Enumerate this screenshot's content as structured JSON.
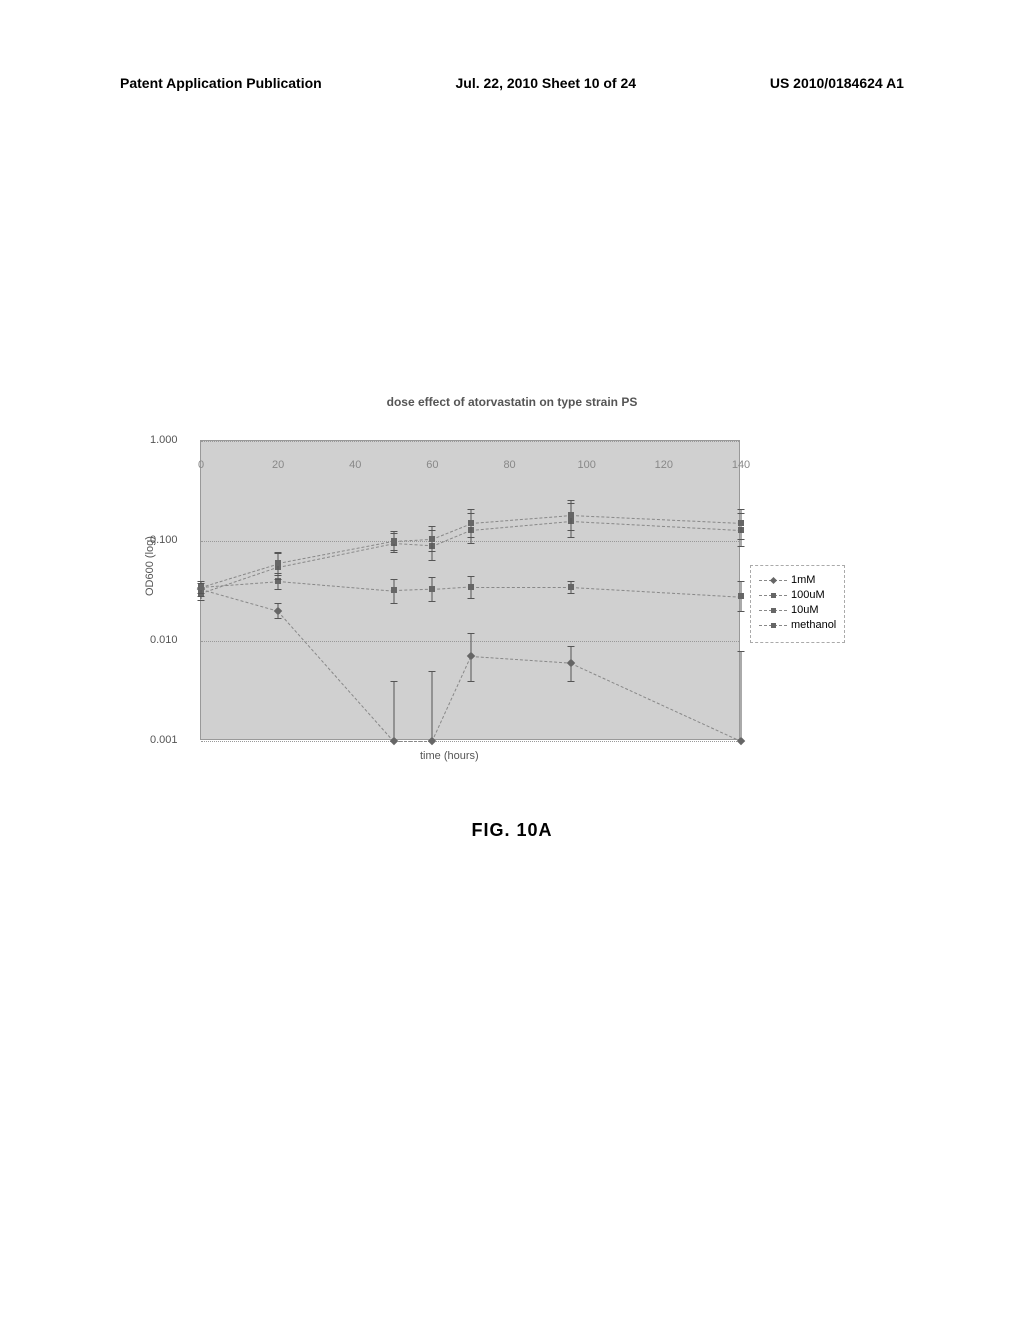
{
  "header": {
    "left": "Patent Application Publication",
    "center": "Jul. 22, 2010  Sheet 10 of 24",
    "right": "US 2010/0184624 A1"
  },
  "chart": {
    "title": "dose effect of atorvastatin on type strain PS",
    "x_axis_title": "time (hours)",
    "y_axis_title": "OD600 (log)",
    "x_ticks": [
      0,
      20,
      40,
      60,
      80,
      100,
      120,
      140
    ],
    "y_ticks": [
      "1.000",
      "0.100",
      "0.010",
      "0.001"
    ],
    "xlim": [
      0,
      140
    ],
    "ylim_log": [
      0.001,
      1.0
    ],
    "background_color": "#d0d0d0",
    "grid_color": "#999999"
  },
  "series": {
    "1mM": {
      "marker": "diamond",
      "x": [
        0,
        20,
        50,
        60,
        70,
        96,
        140
      ],
      "y": [
        0.033,
        0.02,
        0.001,
        0.001,
        0.007,
        0.006,
        0.001
      ],
      "err_hi": [
        0.038,
        0.024,
        0.004,
        0.005,
        0.012,
        0.009,
        0.008
      ],
      "err_lo": [
        0.028,
        0.017,
        0.001,
        0.001,
        0.004,
        0.004,
        0.001
      ]
    },
    "100uM": {
      "marker": "square",
      "x": [
        0,
        20,
        50,
        60,
        70,
        96,
        140
      ],
      "y": [
        0.035,
        0.04,
        0.032,
        0.033,
        0.035,
        0.035,
        0.028
      ],
      "err_hi": [
        0.04,
        0.048,
        0.042,
        0.044,
        0.045,
        0.04,
        0.04
      ],
      "err_lo": [
        0.03,
        0.033,
        0.024,
        0.025,
        0.027,
        0.03,
        0.02
      ]
    },
    "10uM": {
      "marker": "square",
      "x": [
        0,
        20,
        50,
        60,
        70,
        96,
        140
      ],
      "y": [
        0.03,
        0.055,
        0.095,
        0.09,
        0.13,
        0.16,
        0.13
      ],
      "err_hi": [
        0.035,
        0.075,
        0.12,
        0.13,
        0.19,
        0.24,
        0.19
      ],
      "err_lo": [
        0.026,
        0.042,
        0.078,
        0.065,
        0.095,
        0.11,
        0.09
      ]
    },
    "methanol": {
      "marker": "square",
      "x": [
        0,
        20,
        50,
        60,
        70,
        96,
        140
      ],
      "y": [
        0.035,
        0.06,
        0.1,
        0.105,
        0.15,
        0.18,
        0.15
      ],
      "err_hi": [
        0.04,
        0.078,
        0.125,
        0.14,
        0.21,
        0.26,
        0.21
      ],
      "err_lo": [
        0.03,
        0.046,
        0.082,
        0.08,
        0.11,
        0.13,
        0.105
      ]
    }
  },
  "legend": {
    "items": [
      "1mM",
      "100uM",
      "10uM",
      "methanol"
    ]
  },
  "figure_label": "FIG. 10A"
}
